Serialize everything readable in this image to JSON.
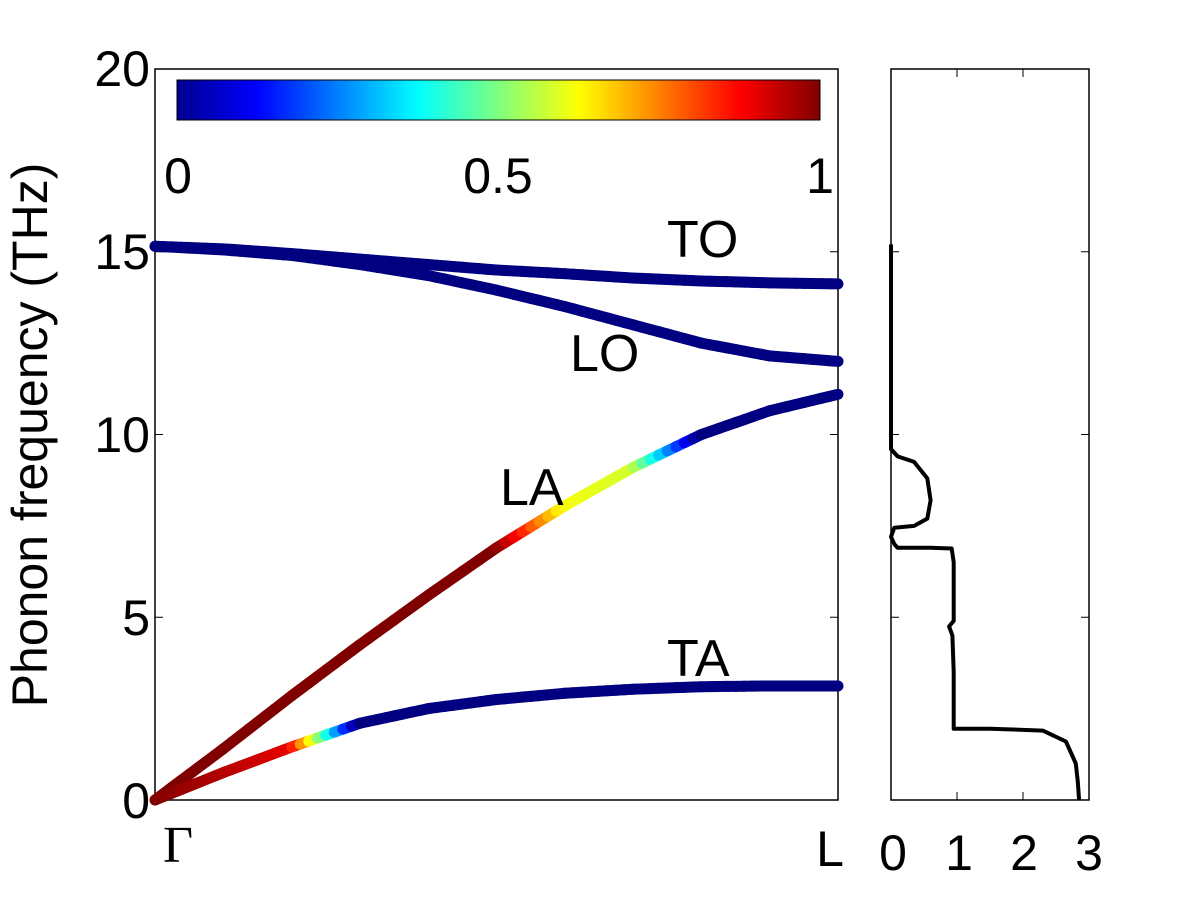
{
  "chart_data": [
    {
      "type": "line",
      "title": "",
      "ylabel": "Phonon frequency (THz)",
      "xlabel": "",
      "ylim": [
        0,
        20
      ],
      "yticks": [
        "0",
        "5",
        "10",
        "15",
        "20"
      ],
      "xticks": [
        "Γ",
        "L"
      ],
      "x": [
        0.0,
        0.1,
        0.2,
        0.3,
        0.4,
        0.5,
        0.6,
        0.7,
        0.8,
        0.9,
        1.0
      ],
      "colorbar": {
        "range": [
          0,
          1
        ],
        "ticks": [
          "0",
          "0.5",
          "1"
        ],
        "colormap": "jet",
        "stops": [
          "#00008F",
          "#0000FF",
          "#00FFFF",
          "#FFFF00",
          "#FF0000",
          "#800000"
        ]
      },
      "series": [
        {
          "name": "TO",
          "values": [
            15.15,
            15.08,
            14.95,
            14.8,
            14.65,
            14.5,
            14.4,
            14.28,
            14.2,
            14.15,
            14.12
          ],
          "color_value": [
            0,
            0,
            0,
            0,
            0,
            0,
            0,
            0,
            0,
            0,
            0
          ]
        },
        {
          "name": "LO",
          "values": [
            15.15,
            15.05,
            14.9,
            14.65,
            14.35,
            13.95,
            13.5,
            13.0,
            12.5,
            12.15,
            12.0
          ],
          "color_value": [
            0,
            0,
            0,
            0,
            0,
            0,
            0,
            0,
            0,
            0,
            0
          ]
        },
        {
          "name": "LA",
          "values": [
            0.0,
            1.4,
            2.85,
            4.25,
            5.6,
            6.9,
            8.05,
            9.1,
            10.0,
            10.65,
            11.1
          ],
          "color_value": [
            1,
            1,
            1,
            1,
            1,
            1,
            0.62,
            0.58,
            0,
            0,
            0
          ]
        },
        {
          "name": "TA",
          "values": [
            0.0,
            0.75,
            1.45,
            2.1,
            2.5,
            2.75,
            2.92,
            3.03,
            3.1,
            3.12,
            3.12
          ],
          "color_value": [
            1,
            0.95,
            0.9,
            0,
            0,
            0,
            0,
            0,
            0,
            0,
            0
          ]
        }
      ]
    },
    {
      "type": "line",
      "title": "",
      "xlabel": "",
      "ylabel": "",
      "xlim": [
        0,
        3
      ],
      "ylim": [
        0,
        20
      ],
      "xticks": [
        "0",
        "1",
        "2",
        "3"
      ],
      "series": [
        {
          "name": "",
          "points": [
            [
              2.85,
              0.0
            ],
            [
              2.83,
              0.5
            ],
            [
              2.8,
              1.0
            ],
            [
              2.65,
              1.6
            ],
            [
              2.3,
              1.9
            ],
            [
              1.5,
              1.95
            ],
            [
              0.95,
              1.95
            ],
            [
              0.95,
              2.5
            ],
            [
              0.95,
              3.5
            ],
            [
              0.93,
              4.5
            ],
            [
              0.88,
              4.75
            ],
            [
              0.95,
              4.9
            ],
            [
              0.95,
              5.5
            ],
            [
              0.95,
              6.5
            ],
            [
              0.92,
              6.88
            ],
            [
              0.6,
              6.9
            ],
            [
              0.1,
              6.9
            ],
            [
              0.05,
              7.0
            ],
            [
              0.0,
              7.2
            ],
            [
              0.05,
              7.45
            ],
            [
              0.35,
              7.5
            ],
            [
              0.55,
              7.7
            ],
            [
              0.6,
              8.2
            ],
            [
              0.55,
              8.8
            ],
            [
              0.35,
              9.25
            ],
            [
              0.1,
              9.4
            ],
            [
              0.0,
              9.6
            ],
            [
              0.0,
              10.0
            ],
            [
              0.0,
              13.0
            ],
            [
              0.0,
              15.2
            ]
          ]
        }
      ]
    }
  ]
}
